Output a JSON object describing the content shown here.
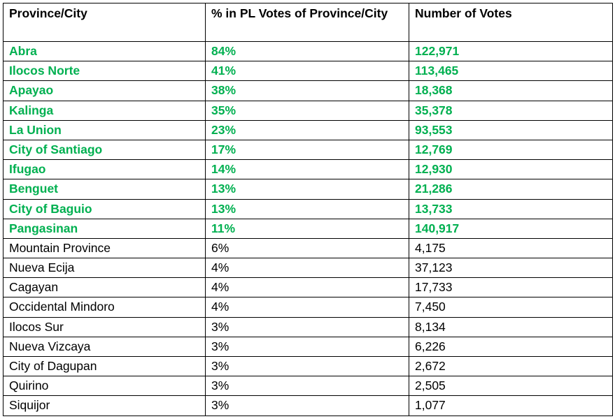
{
  "table": {
    "headers": {
      "province": "Province/City",
      "percent": "% in PL Votes of Province/City",
      "votes": "Number of Votes"
    },
    "highlight_color": "#00b050",
    "rows": [
      {
        "province": "Abra",
        "percent": "84%",
        "votes": "122,971",
        "highlight": true
      },
      {
        "province": "Ilocos Norte",
        "percent": "41%",
        "votes": "113,465",
        "highlight": true
      },
      {
        "province": "Apayao",
        "percent": "38%",
        "votes": "18,368",
        "highlight": true
      },
      {
        "province": "Kalinga",
        "percent": "35%",
        "votes": "35,378",
        "highlight": true
      },
      {
        "province": "La Union",
        "percent": "23%",
        "votes": "93,553",
        "highlight": true
      },
      {
        "province": "City of Santiago",
        "percent": "17%",
        "votes": "12,769",
        "highlight": true
      },
      {
        "province": "Ifugao",
        "percent": "14%",
        "votes": "12,930",
        "highlight": true
      },
      {
        "province": "Benguet",
        "percent": "13%",
        "votes": "21,286",
        "highlight": true
      },
      {
        "province": "City of Baguio",
        "percent": "13%",
        "votes": "13,733",
        "highlight": true
      },
      {
        "province": "Pangasinan",
        "percent": "11%",
        "votes": "140,917",
        "highlight": true
      },
      {
        "province": "Mountain Province",
        "percent": "6%",
        "votes": "4,175",
        "highlight": false
      },
      {
        "province": "Nueva Ecija",
        "percent": "4%",
        "votes": "37,123",
        "highlight": false
      },
      {
        "province": "Cagayan",
        "percent": "4%",
        "votes": "17,733",
        "highlight": false
      },
      {
        "province": "Occidental Mindoro",
        "percent": "4%",
        "votes": "7,450",
        "highlight": false
      },
      {
        "province": "Ilocos Sur",
        "percent": "3%",
        "votes": "8,134",
        "highlight": false
      },
      {
        "province": "Nueva Vizcaya",
        "percent": "3%",
        "votes": "6,226",
        "highlight": false
      },
      {
        "province": "City of Dagupan",
        "percent": "3%",
        "votes": "2,672",
        "highlight": false
      },
      {
        "province": "Quirino",
        "percent": "3%",
        "votes": "2,505",
        "highlight": false
      },
      {
        "province": "Siquijor",
        "percent": "3%",
        "votes": "1,077",
        "highlight": false
      }
    ]
  }
}
